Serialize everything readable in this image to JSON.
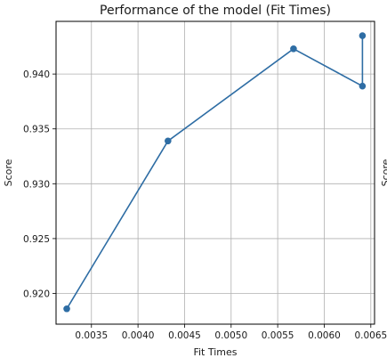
{
  "chart_data": {
    "type": "line",
    "title": "Performance of the model (Fit Times)",
    "xlabel": "Fit Times",
    "ylabel": "Score",
    "xlim": [
      0.00312,
      0.00654
    ],
    "ylim": [
      0.9172,
      0.9448
    ],
    "xticks": [
      0.0035,
      0.004,
      0.0045,
      0.005,
      0.0055,
      0.006,
      0.0065
    ],
    "xtick_labels": [
      "0.0035",
      "0.0040",
      "0.0045",
      "0.0050",
      "0.0055",
      "0.0060",
      "0.0065"
    ],
    "yticks": [
      0.92,
      0.925,
      0.93,
      0.935,
      0.94
    ],
    "ytick_labels": [
      "0.920",
      "0.925",
      "0.930",
      "0.935",
      "0.940"
    ],
    "grid": true,
    "series": [
      {
        "color": "#2e6da4",
        "x": [
          0.003235,
          0.004322,
          0.00567,
          0.00641,
          0.00641
        ],
        "y": [
          0.9186,
          0.9339,
          0.9423,
          0.9389,
          0.9435
        ]
      }
    ],
    "cut_off_label": "Score"
  }
}
